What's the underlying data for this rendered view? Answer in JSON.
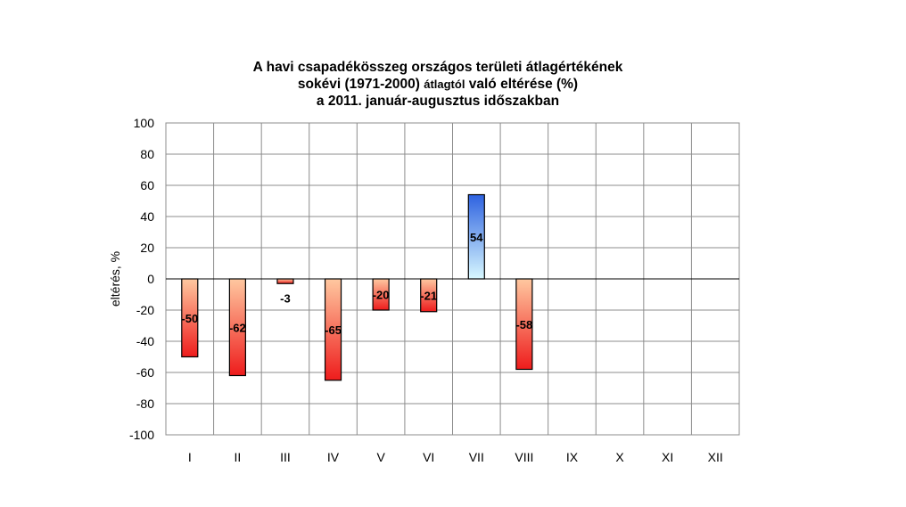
{
  "chart_data": {
    "type": "bar",
    "title_lines": [
      "A havi csapadékösszeg országos területi átlagértékének",
      [
        "sokévi (1971-2000) ",
        "átlagtól",
        " való eltérése (%)"
      ],
      "a 2011. január-augusztus időszakban"
    ],
    "ylabel": "eltérés, %",
    "xlabel": "",
    "categories": [
      "I",
      "II",
      "III",
      "IV",
      "V",
      "VI",
      "VII",
      "VIII",
      "IX",
      "X",
      "XI",
      "XII"
    ],
    "values": [
      -50,
      -62,
      -3,
      -65,
      -20,
      -21,
      54,
      -58,
      null,
      null,
      null,
      null
    ],
    "labels": [
      "-50",
      "-62",
      "-3",
      "-65",
      "-20",
      "-21",
      "54",
      "-58"
    ],
    "ylim": [
      -100,
      100
    ],
    "yticks": [
      100,
      80,
      60,
      40,
      20,
      0,
      -20,
      -40,
      -60,
      -80,
      -100
    ],
    "grid": true,
    "legend": "none",
    "colors": {
      "negative_top": "#ffc8a0",
      "negative_bottom": "#ee1c1c",
      "positive_top": "#2e62e0",
      "positive_bottom": "#d8f8ff",
      "grid": "#8c8c8c"
    }
  }
}
